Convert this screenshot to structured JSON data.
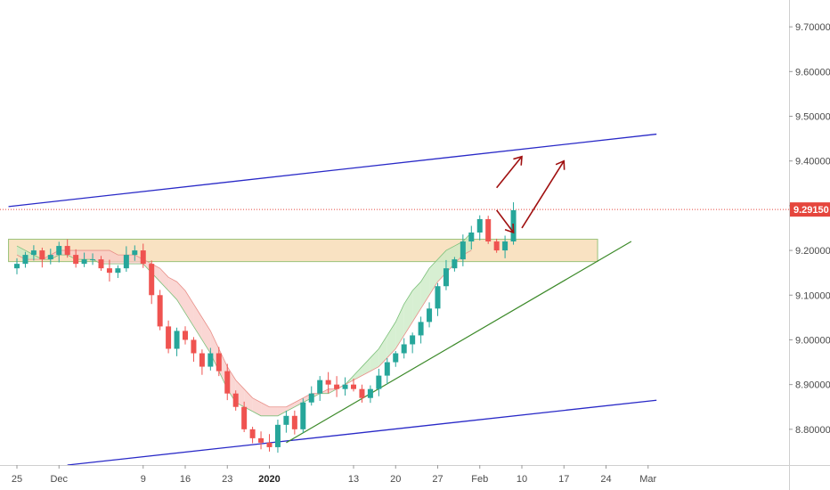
{
  "chart_data": {
    "type": "candlestick",
    "instrument_last_price": "9.29150",
    "last_price": 9.2915,
    "price_tag_color": "#e5463d",
    "ylim": [
      8.72,
      9.76
    ],
    "y_ticks": [
      "9.70000",
      "9.60000",
      "9.50000",
      "9.40000",
      "9.30000",
      "9.20000",
      "9.10000",
      "9.00000",
      "8.90000",
      "8.80000"
    ],
    "y_tick_values": [
      9.7,
      9.6,
      9.5,
      9.4,
      9.3,
      9.2,
      9.1,
      9.0,
      8.9,
      8.8
    ],
    "x_ticks": [
      {
        "label": "25",
        "index": 0
      },
      {
        "label": "Dec",
        "index": 5
      },
      {
        "label": "9",
        "index": 15
      },
      {
        "label": "16",
        "index": 20
      },
      {
        "label": "23",
        "index": 25
      },
      {
        "label": "2020",
        "index": 30,
        "bold": true
      },
      {
        "label": "13",
        "index": 40
      },
      {
        "label": "20",
        "index": 45
      },
      {
        "label": "27",
        "index": 50
      },
      {
        "label": "Feb",
        "index": 55
      },
      {
        "label": "10",
        "index": 60
      },
      {
        "label": "17",
        "index": 65
      },
      {
        "label": "24",
        "index": 70
      },
      {
        "label": "Mar",
        "index": 75
      }
    ],
    "close": [
      9.17,
      9.19,
      9.2,
      9.18,
      9.19,
      9.21,
      9.19,
      9.17,
      9.18,
      9.18,
      9.16,
      9.15,
      9.16,
      9.19,
      9.2,
      9.17,
      9.1,
      9.03,
      8.98,
      9.02,
      9.0,
      8.97,
      8.94,
      8.97,
      8.93,
      8.88,
      8.85,
      8.8,
      8.78,
      8.77,
      8.76,
      8.81,
      8.83,
      8.8,
      8.86,
      8.88,
      8.91,
      8.9,
      8.89,
      8.9,
      8.89,
      8.87,
      8.89,
      8.92,
      8.95,
      8.97,
      8.99,
      9.01,
      9.04,
      9.07,
      9.12,
      9.16,
      9.18,
      9.22,
      9.24,
      9.27,
      9.22,
      9.2,
      9.22,
      9.29
    ],
    "cloud_span_a": [
      9.21,
      9.2,
      9.19,
      9.18,
      9.18,
      9.19,
      9.19,
      9.18,
      9.18,
      9.18,
      9.17,
      9.17,
      9.17,
      9.17,
      9.17,
      9.17,
      9.15,
      9.13,
      9.11,
      9.09,
      9.06,
      9.03,
      9.0,
      8.97,
      8.93,
      8.89,
      8.86,
      8.85,
      8.84,
      8.83,
      8.83,
      8.83,
      8.84,
      8.85,
      8.86,
      8.87,
      8.88,
      8.88,
      8.89,
      8.9,
      8.92,
      8.94,
      8.96,
      8.98,
      9.01,
      9.04,
      9.08,
      9.11,
      9.13,
      9.16,
      9.18,
      9.2,
      9.21,
      9.22,
      9.24
    ],
    "cloud_span_b": [
      9.19,
      9.18,
      9.18,
      9.18,
      9.19,
      9.2,
      9.2,
      9.2,
      9.2,
      9.2,
      9.2,
      9.2,
      9.19,
      9.19,
      9.19,
      9.18,
      9.17,
      9.16,
      9.14,
      9.13,
      9.11,
      9.08,
      9.05,
      9.02,
      8.98,
      8.94,
      8.91,
      8.89,
      8.87,
      8.86,
      8.85,
      8.85,
      8.85,
      8.86,
      8.87,
      8.88,
      8.88,
      8.89,
      8.89,
      8.9,
      8.91,
      8.92,
      8.93,
      8.94,
      8.96,
      8.98,
      9.01,
      9.04,
      9.07,
      9.1,
      9.13,
      9.15,
      9.17,
      9.19,
      9.2
    ],
    "cloud_start_index": 20,
    "resistance_zone": {
      "top": 9.225,
      "bottom": 9.175,
      "from_index": -1,
      "to_index": 69
    },
    "channel_upper": {
      "from": {
        "index": -1,
        "price": 9.298
      },
      "to": {
        "index": 76,
        "price": 9.46
      }
    },
    "channel_lower": {
      "from": {
        "index": 6,
        "price": 8.72
      },
      "to": {
        "index": 76,
        "price": 8.865
      }
    },
    "trendline": {
      "from": {
        "index": 32,
        "price": 8.77
      },
      "to": {
        "index": 73,
        "price": 9.22
      }
    },
    "arrows": [
      {
        "type": "up",
        "from": {
          "index": 57,
          "price": 9.34
        },
        "to": {
          "index": 60,
          "price": 9.41
        }
      },
      {
        "type": "down",
        "from": {
          "index": 57,
          "price": 9.29
        },
        "to": {
          "index": 59,
          "price": 9.24
        }
      },
      {
        "type": "up",
        "from": {
          "index": 60,
          "price": 9.25
        },
        "to": {
          "index": 65,
          "price": 9.4
        }
      }
    ],
    "colors": {
      "up": "#26a69a",
      "down": "#ef5350",
      "channel": "#2929c7",
      "trendline": "#3d8a2a",
      "zone_fill": "#f7d6a8",
      "zone_border": "#9bc27a",
      "cloud_bull": "#c9e9c3",
      "cloud_bear": "#f8c9c5",
      "arrow": "#a01010",
      "price_line": "#e5463d",
      "axis": "#cfcfcf"
    }
  }
}
